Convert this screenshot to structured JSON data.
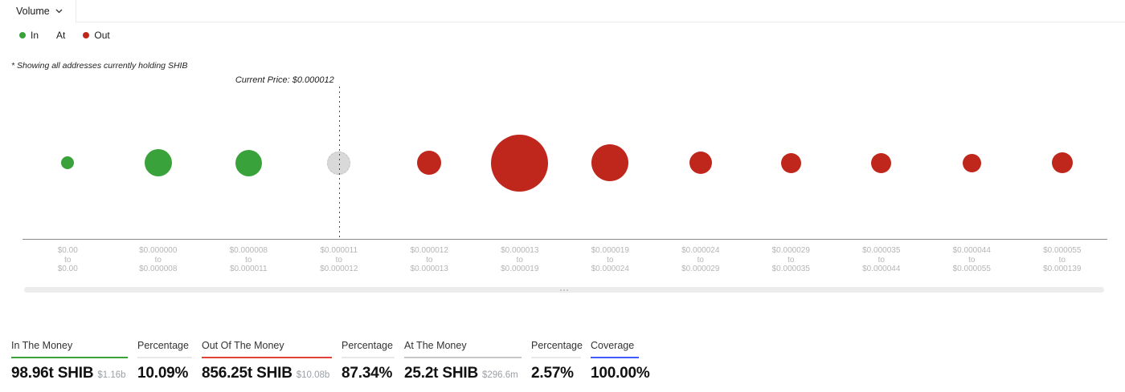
{
  "header": {
    "tab_label": "Volume",
    "legend": [
      {
        "label": "In",
        "dot": "#3aa23a"
      },
      {
        "label": "At",
        "dot": null
      },
      {
        "label": "Out",
        "dot": "#bf271c"
      }
    ],
    "note": "* Showing all addresses currently holding SHIB"
  },
  "chart_data": {
    "type": "bubble",
    "current_price_label": "Current Price: $0.000012",
    "current_price_index": 3,
    "range_separator": "to",
    "colors": {
      "in": "#3aa23a",
      "at": "#d9d9d9",
      "out": "#bf271c"
    },
    "points": [
      {
        "from": "$0.00",
        "to": "$0.00",
        "status": "in",
        "size": 16
      },
      {
        "from": "$0.000000",
        "to": "$0.000008",
        "status": "in",
        "size": 34
      },
      {
        "from": "$0.000008",
        "to": "$0.000011",
        "status": "in",
        "size": 33
      },
      {
        "from": "$0.000011",
        "to": "$0.000012",
        "status": "at",
        "size": 29
      },
      {
        "from": "$0.000012",
        "to": "$0.000013",
        "status": "out",
        "size": 30
      },
      {
        "from": "$0.000013",
        "to": "$0.000019",
        "status": "out",
        "size": 71
      },
      {
        "from": "$0.000019",
        "to": "$0.000024",
        "status": "out",
        "size": 46
      },
      {
        "from": "$0.000024",
        "to": "$0.000029",
        "status": "out",
        "size": 28
      },
      {
        "from": "$0.000029",
        "to": "$0.000035",
        "status": "out",
        "size": 25
      },
      {
        "from": "$0.000035",
        "to": "$0.000044",
        "status": "out",
        "size": 25
      },
      {
        "from": "$0.000044",
        "to": "$0.000055",
        "status": "out",
        "size": 23
      },
      {
        "from": "$0.000055",
        "to": "$0.000139",
        "status": "out",
        "size": 26
      }
    ]
  },
  "stats": [
    {
      "label": "In The Money",
      "value": "98.96t SHIB",
      "sub": "$1.16b",
      "underline": "#3aa23a"
    },
    {
      "label": "Percentage",
      "value": "10.09%",
      "sub": "",
      "underline": "#e8e8e8"
    },
    {
      "label": "Out Of The Money",
      "value": "856.25t SHIB",
      "sub": "$10.08b",
      "underline": "#e04238"
    },
    {
      "label": "Percentage",
      "value": "87.34%",
      "sub": "",
      "underline": "#e8e8e8"
    },
    {
      "label": "At The Money",
      "value": "25.2t SHIB",
      "sub": "$296.6m",
      "underline": "#c7c7c7"
    },
    {
      "label": "Percentage",
      "value": "2.57%",
      "sub": "",
      "underline": "#e8e8e8"
    },
    {
      "label": "Coverage",
      "value": "100.00%",
      "sub": "",
      "underline": "#3d5afe"
    }
  ]
}
